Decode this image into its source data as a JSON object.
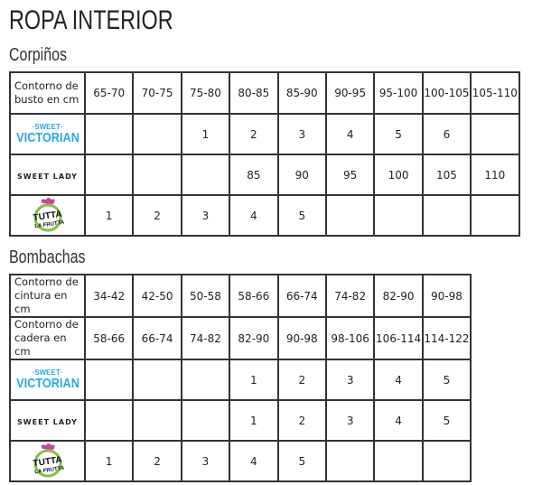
{
  "title": "ROPA INTERIOR",
  "brands": {
    "sweet_victorian": [
      "·SWEET·",
      "VICTORIAN"
    ],
    "sweet_lady": "SWEET LADY",
    "tutta": [
      "TUTTA",
      "LA FRUTTA"
    ]
  },
  "colors": {
    "sweet_victorian": "#29a8e0",
    "tutta_green": "#7dc242",
    "tutta_pink": "#c6449a"
  },
  "corpinos": {
    "heading": "Corpiños",
    "header_label": "Contorno de busto en cm",
    "sizes": [
      "65-70",
      "70-75",
      "75-80",
      "80-85",
      "85-90",
      "90-95",
      "95-100",
      "100-105",
      "105-110"
    ],
    "rows": [
      {
        "brand": "sweet_victorian",
        "values": [
          "",
          "",
          "1",
          "2",
          "3",
          "4",
          "5",
          "6",
          ""
        ]
      },
      {
        "brand": "sweet_lady",
        "values": [
          "",
          "",
          "",
          "85",
          "90",
          "95",
          "100",
          "105",
          "110"
        ]
      },
      {
        "brand": "tutta",
        "values": [
          "1",
          "2",
          "3",
          "4",
          "5",
          "",
          "",
          "",
          ""
        ]
      }
    ]
  },
  "bombachas": {
    "heading": "Bombachas",
    "waist_label": "Contorno de cintura en cm",
    "waist": [
      "34-42",
      "42-50",
      "50-58",
      "58-66",
      "66-74",
      "74-82",
      "82-90",
      "90-98"
    ],
    "hip_label": "Contorno de cadera en cm",
    "hip": [
      "58-66",
      "66-74",
      "74-82",
      "82-90",
      "90-98",
      "98-106",
      "106-114",
      "114-122"
    ],
    "rows": [
      {
        "brand": "sweet_victorian",
        "values": [
          "",
          "",
          "",
          "1",
          "2",
          "3",
          "4",
          "5"
        ]
      },
      {
        "brand": "sweet_lady",
        "values": [
          "",
          "",
          "",
          "1",
          "2",
          "3",
          "4",
          "5"
        ]
      },
      {
        "brand": "tutta",
        "values": [
          "1",
          "2",
          "3",
          "4",
          "5",
          "",
          "",
          ""
        ]
      }
    ]
  }
}
